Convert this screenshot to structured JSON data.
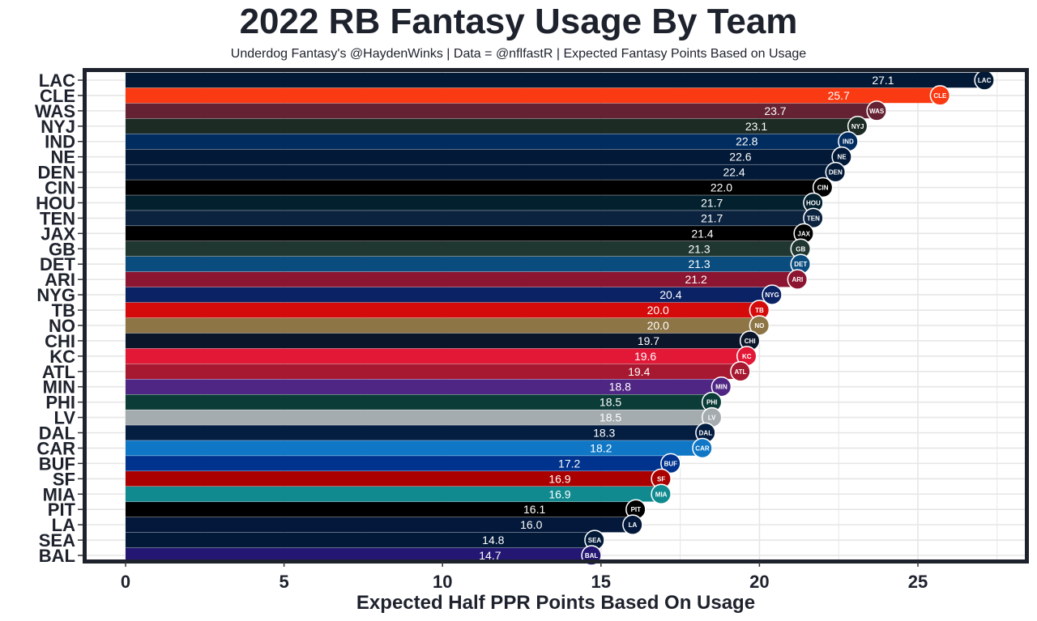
{
  "chart_data": {
    "type": "bar",
    "orientation": "horizontal",
    "title": "2022 RB Fantasy Usage By Team",
    "subtitle": "Underdog Fantasy's @HaydenWinks | Data = @nflfastR | Expected Fantasy Points Based on Usage",
    "xlabel": "Expected Half PPR Points Based On Usage",
    "ylabel": "",
    "xlim": [
      0,
      27.5
    ],
    "xticks": [
      "0",
      "5",
      "10",
      "15",
      "20",
      "25"
    ],
    "grid": true,
    "categories": [
      "LAC",
      "CLE",
      "WAS",
      "NYJ",
      "IND",
      "NE",
      "DEN",
      "CIN",
      "HOU",
      "TEN",
      "JAX",
      "GB",
      "DET",
      "ARI",
      "NYG",
      "TB",
      "NO",
      "CHI",
      "KC",
      "ATL",
      "MIN",
      "PHI",
      "LV",
      "DAL",
      "CAR",
      "BUF",
      "SF",
      "MIA",
      "PIT",
      "LA",
      "SEA",
      "BAL"
    ],
    "values": [
      27.1,
      25.7,
      23.7,
      23.1,
      22.8,
      22.6,
      22.4,
      22.0,
      21.7,
      21.7,
      21.4,
      21.3,
      21.3,
      21.2,
      20.4,
      20.0,
      20.0,
      19.7,
      19.6,
      19.4,
      18.8,
      18.5,
      18.5,
      18.3,
      18.2,
      17.2,
      16.9,
      16.9,
      16.1,
      16.0,
      14.8,
      14.7
    ],
    "labels": [
      "27.1",
      "25.7",
      "23.7",
      "23.1",
      "22.8",
      "22.6",
      "22.4",
      "22.0",
      "21.7",
      "21.7",
      "21.4",
      "21.3",
      "21.3",
      "21.2",
      "20.4",
      "20.0",
      "20.0",
      "19.7",
      "19.6",
      "19.4",
      "18.8",
      "18.5",
      "18.5",
      "18.3",
      "18.2",
      "17.2",
      "16.9",
      "16.9",
      "16.1",
      "16.0",
      "14.8",
      "14.7"
    ],
    "colors": [
      "#031a36",
      "#fa3a13",
      "#652233",
      "#1c2b24",
      "#002c5f",
      "#021938",
      "#021938",
      "#000000",
      "#03202f",
      "#0c2340",
      "#000000",
      "#203731",
      "#0b4c7f",
      "#8c1531",
      "#0b2265",
      "#d50a0a",
      "#8e7545",
      "#0b162a",
      "#e31837",
      "#a71930",
      "#4f2683",
      "#0b3c38",
      "#a5acaf",
      "#041e42",
      "#0f77c6",
      "#00338d",
      "#aa0000",
      "#108a8f",
      "#000000",
      "#03183a",
      "#021938",
      "#241773"
    ]
  }
}
